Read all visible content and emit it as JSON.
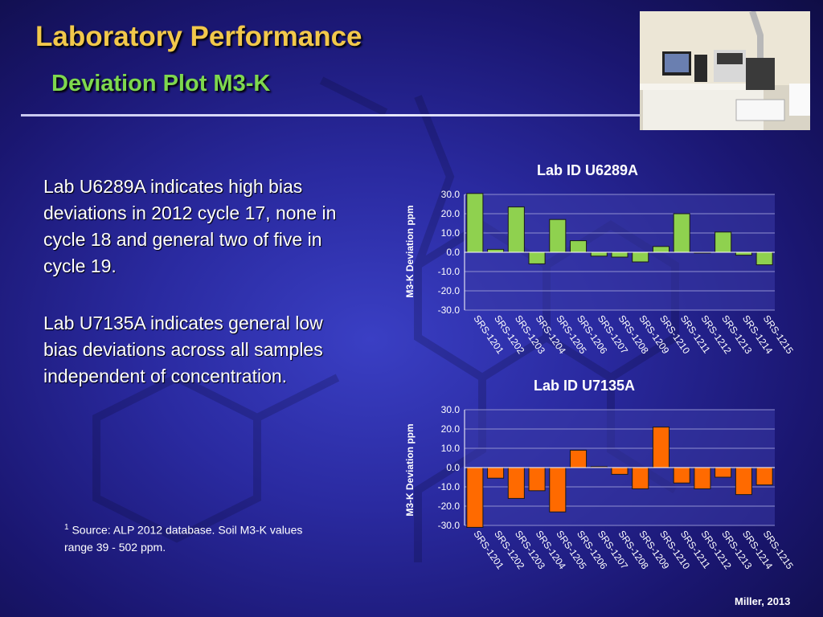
{
  "slide": {
    "title": "Laboratory Performance",
    "subtitle": "Deviation Plot M3-K",
    "paragraphs": [
      "Lab U6289A indicates high bias deviations in 2012 cycle 17, none in cycle 18 and general two of five in cycle 19.",
      "Lab U7135A indicates general low bias deviations across all samples independent of concentration."
    ],
    "footnote_mark": "1",
    "footnote_text": "Source: ALP 2012 database.  Soil M3-K values range 39 - 502 ppm.",
    "credit": "Miller, 2013"
  },
  "colors": {
    "title": "#f2c84b",
    "subtitle": "#7ed84e",
    "chart1_bar": "#8fd14f",
    "chart2_bar": "#ff6a00"
  },
  "chart_data": [
    {
      "type": "bar",
      "title": "Lab ID U6289A",
      "ylabel": "M3-K  Deviation ppm",
      "categories": [
        "SRS-1201",
        "SRS-1202",
        "SRS-1203",
        "SRS-1204",
        "SRS-1205",
        "SRS-1206",
        "SRS-1207",
        "SRS-1208",
        "SRS-1209",
        "SRS-1210",
        "SRS-1211",
        "SRS-1212",
        "SRS-1213",
        "SRS-1214",
        "SRS-1215"
      ],
      "values": [
        30.5,
        1.5,
        23.5,
        -6.0,
        17.0,
        6.0,
        -2.0,
        -2.5,
        -5.0,
        3.0,
        20.0,
        0.0,
        10.5,
        -1.5,
        -6.5
      ],
      "ylim": [
        -30,
        30
      ],
      "yticks": [
        "30.0",
        "20.0",
        "10.0",
        "0.0",
        "-10.0",
        "-20.0",
        "-30.0"
      ],
      "bar_color": "#8fd14f",
      "grid": true
    },
    {
      "type": "bar",
      "title": "Lab ID U7135A",
      "ylabel": "M3-K  Deviation ppm",
      "categories": [
        "SRS-1201",
        "SRS-1202",
        "SRS-1203",
        "SRS-1204",
        "SRS-1205",
        "SRS-1206",
        "SRS-1207",
        "SRS-1208",
        "SRS-1209",
        "SRS-1210",
        "SRS-1211",
        "SRS-1212",
        "SRS-1213",
        "SRS-1214",
        "SRS-1215"
      ],
      "values": [
        -31.0,
        -5.5,
        -16.0,
        -12.0,
        -23.0,
        9.0,
        0.5,
        -3.5,
        -11.0,
        21.0,
        -8.0,
        -11.0,
        -5.0,
        -14.0,
        -9.0
      ],
      "ylim": [
        -30,
        30
      ],
      "yticks": [
        "30.0",
        "20.0",
        "10.0",
        "0.0",
        "-10.0",
        "-20.0",
        "-30.0"
      ],
      "bar_color": "#ff6a00",
      "grid": true
    }
  ]
}
